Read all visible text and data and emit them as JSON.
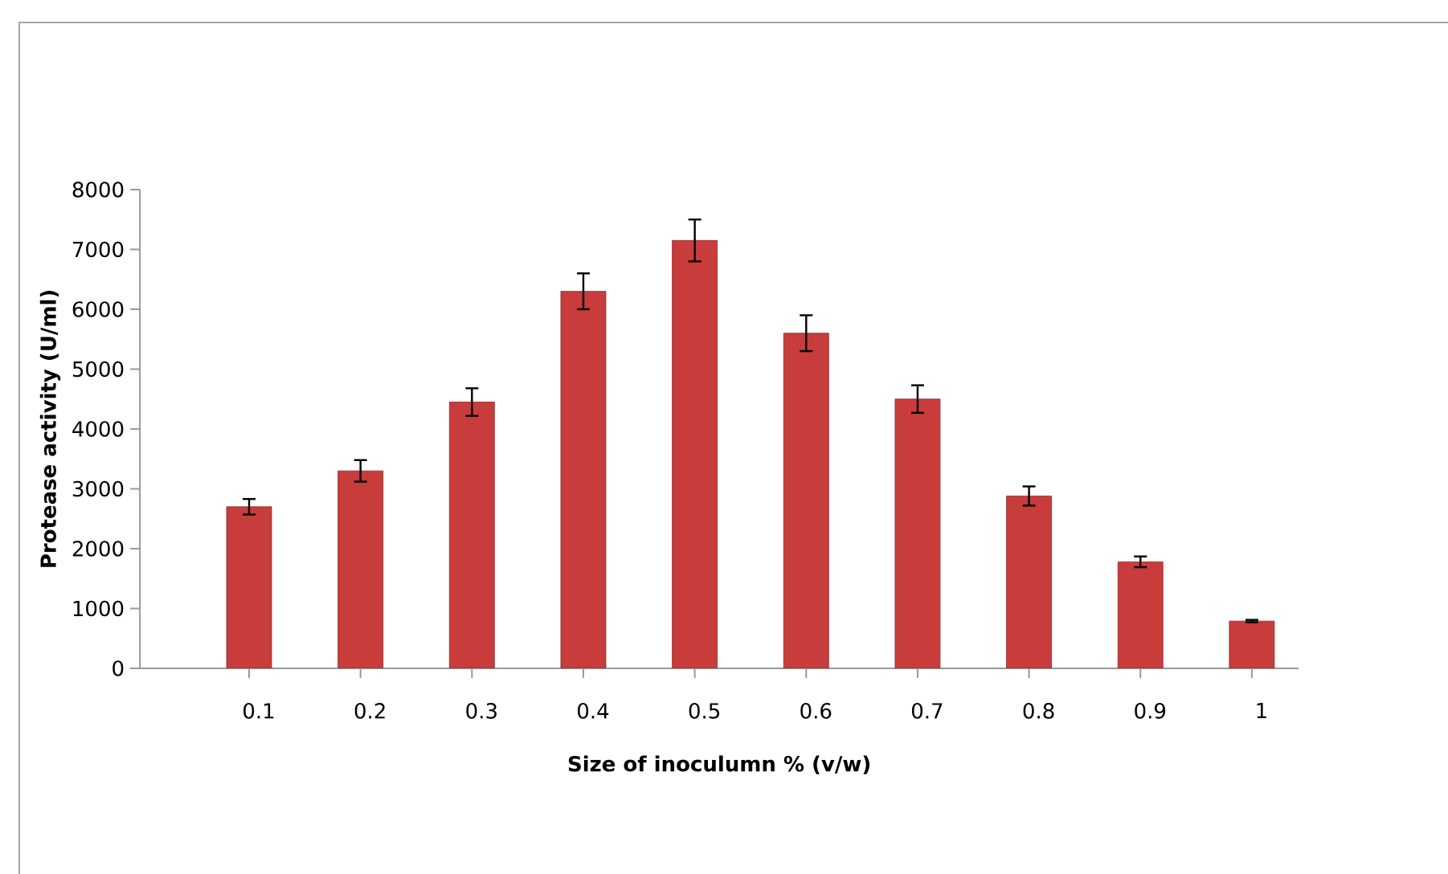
{
  "chart_data": {
    "type": "bar",
    "xlabel": "Size of inoculumn % (v/w)",
    "ylabel": "Protease activity  (U/ml)",
    "categories": [
      "0.1",
      "0.2",
      "0.3",
      "0.4",
      "0.5",
      "0.6",
      "0.7",
      "0.8",
      "0.9",
      "1"
    ],
    "values": [
      2700,
      3300,
      4450,
      6300,
      7150,
      5600,
      4500,
      2880,
      1780,
      790
    ],
    "errors": [
      130,
      180,
      230,
      300,
      350,
      300,
      230,
      160,
      90,
      20
    ],
    "color": "#c83c3c",
    "ylim": [
      0,
      8000
    ],
    "yticks": [
      0,
      1000,
      2000,
      3000,
      4000,
      5000,
      6000,
      7000,
      8000
    ]
  }
}
